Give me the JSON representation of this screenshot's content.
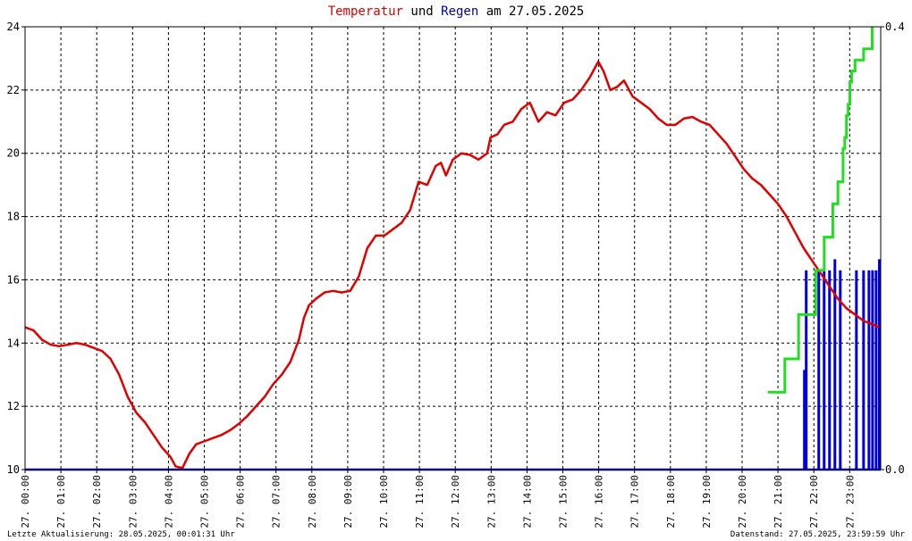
{
  "title": {
    "part1": "Temperatur",
    "part2": " und ",
    "part3": "Regen",
    "part4": " am 27.05.2025"
  },
  "colors": {
    "temperature": "#e00000",
    "rain_sum": "#22dd22",
    "rain_bars": "#0000e0",
    "grid": "#000000"
  },
  "footer": {
    "left": "Letzte Aktualisierung: 28.05.2025, 00:01:31 Uhr",
    "right": "Datenstand: 27.05.2025, 23:59:59 Uhr"
  },
  "chart_data": {
    "type": "line",
    "title": "Temperatur und Regen am 27.05.2025",
    "x_unit": "hours",
    "xlim": [
      0,
      24
    ],
    "ylim_left": [
      10,
      24
    ],
    "yticks_left": [
      "10",
      "12",
      "14",
      "16",
      "18",
      "20",
      "22",
      "24"
    ],
    "ylim_right": [
      0,
      0.4
    ],
    "yticks_right": [
      "0.0",
      "0.4"
    ],
    "xtick_labels": [
      "27. 00:00",
      "27. 01:00",
      "27. 02:00",
      "27. 03:00",
      "27. 04:00",
      "27. 05:00",
      "27. 06:00",
      "27. 07:00",
      "27. 08:00",
      "27. 09:00",
      "27. 10:00",
      "27. 11:00",
      "27. 12:00",
      "27. 13:00",
      "27. 14:00",
      "27. 15:00",
      "27. 16:00",
      "27. 17:00",
      "27. 18:00",
      "27. 19:00",
      "27. 20:00",
      "27. 21:00",
      "27. 22:00",
      "27. 23:00"
    ],
    "grid": true,
    "series": [
      {
        "name": "Temperatur",
        "axis": "left",
        "points": [
          [
            0,
            14.5
          ],
          [
            0.25,
            14.4
          ],
          [
            0.5,
            14.1
          ],
          [
            0.75,
            13.95
          ],
          [
            1,
            13.9
          ],
          [
            1.25,
            13.95
          ],
          [
            1.5,
            14.0
          ],
          [
            1.75,
            13.95
          ],
          [
            2,
            13.85
          ],
          [
            2.25,
            13.75
          ],
          [
            2.5,
            13.5
          ],
          [
            2.75,
            13.0
          ],
          [
            3,
            12.3
          ],
          [
            3.25,
            11.8
          ],
          [
            3.5,
            11.5
          ],
          [
            3.75,
            11.1
          ],
          [
            4,
            10.7
          ],
          [
            4.25,
            10.4
          ],
          [
            4.4,
            10.1
          ],
          [
            4.6,
            10.05
          ],
          [
            4.8,
            10.5
          ],
          [
            5,
            10.8
          ],
          [
            5.25,
            10.9
          ],
          [
            5.5,
            11.0
          ],
          [
            5.75,
            11.1
          ],
          [
            6,
            11.25
          ],
          [
            6.25,
            11.45
          ],
          [
            6.5,
            11.7
          ],
          [
            6.75,
            12.0
          ],
          [
            7,
            12.3
          ],
          [
            7.25,
            12.7
          ],
          [
            7.5,
            13.0
          ],
          [
            7.75,
            13.4
          ],
          [
            8,
            14.1
          ],
          [
            8.15,
            14.8
          ],
          [
            8.3,
            15.2
          ],
          [
            8.5,
            15.4
          ],
          [
            8.75,
            15.6
          ],
          [
            9,
            15.65
          ],
          [
            9.25,
            15.6
          ],
          [
            9.5,
            15.65
          ],
          [
            9.75,
            16.1
          ],
          [
            10,
            17.0
          ],
          [
            10.25,
            17.4
          ],
          [
            10.5,
            17.4
          ],
          [
            10.75,
            17.6
          ],
          [
            11,
            17.8
          ],
          [
            11.25,
            18.2
          ],
          [
            11.5,
            19.1
          ],
          [
            11.75,
            19.0
          ],
          [
            12,
            19.6
          ],
          [
            12.15,
            19.7
          ],
          [
            12.3,
            19.3
          ],
          [
            12.5,
            19.8
          ],
          [
            12.75,
            20.0
          ],
          [
            13,
            19.95
          ],
          [
            13.25,
            19.8
          ],
          [
            13.5,
            20.0
          ],
          [
            13.6,
            20.5
          ],
          [
            13.8,
            20.6
          ],
          [
            14,
            20.9
          ],
          [
            14.25,
            21.0
          ],
          [
            14.5,
            21.4
          ],
          [
            14.75,
            21.6
          ],
          [
            15,
            21.0
          ],
          [
            15.25,
            21.3
          ],
          [
            15.5,
            21.2
          ],
          [
            15.75,
            21.6
          ],
          [
            16,
            21.7
          ],
          [
            16.25,
            22.0
          ],
          [
            16.5,
            22.4
          ],
          [
            16.75,
            22.9
          ],
          [
            16.9,
            22.6
          ],
          [
            17.1,
            22.0
          ],
          [
            17.3,
            22.1
          ],
          [
            17.5,
            22.3
          ],
          [
            17.75,
            21.8
          ],
          [
            18,
            21.6
          ],
          [
            18.25,
            21.4
          ],
          [
            18.5,
            21.1
          ],
          [
            18.75,
            20.9
          ],
          [
            19,
            20.9
          ],
          [
            19.25,
            21.1
          ],
          [
            19.5,
            21.15
          ],
          [
            19.75,
            21.0
          ],
          [
            20,
            20.9
          ],
          [
            20.25,
            20.6
          ],
          [
            20.5,
            20.3
          ],
          [
            20.75,
            19.9
          ],
          [
            21,
            19.5
          ],
          [
            21.25,
            19.2
          ],
          [
            21.5,
            19.0
          ],
          [
            21.75,
            18.7
          ],
          [
            22,
            18.4
          ],
          [
            22.25,
            18.0
          ],
          [
            22.5,
            17.5
          ],
          [
            22.75,
            17.0
          ],
          [
            23,
            16.6
          ],
          [
            23.25,
            16.2
          ],
          [
            23.5,
            15.8
          ],
          [
            23.75,
            15.4
          ],
          [
            24,
            15.1
          ],
          [
            24.25,
            14.9
          ],
          [
            24.5,
            14.7
          ],
          [
            24.75,
            14.6
          ],
          [
            24.95,
            14.5
          ]
        ]
      },
      {
        "name": "Regen",
        "axis": "right",
        "bars": [
          [
            21.7,
            0.09
          ],
          [
            21.75,
            0.18
          ],
          [
            22.1,
            0.18
          ],
          [
            22.25,
            0.18
          ],
          [
            22.4,
            0.18
          ],
          [
            22.55,
            0.19
          ],
          [
            22.7,
            0.18
          ],
          [
            23.15,
            0.18
          ],
          [
            23.35,
            0.18
          ],
          [
            23.5,
            0.18
          ],
          [
            23.6,
            0.18
          ],
          [
            23.7,
            0.18
          ],
          [
            23.8,
            0.18
          ],
          [
            23.9,
            0.19
          ],
          [
            24.0,
            0.18
          ]
        ]
      },
      {
        "name": "Regen Summe",
        "axis": "right",
        "points": [
          [
            21.7,
            0.07
          ],
          [
            22.1,
            0.07
          ],
          [
            22.2,
            0.1
          ],
          [
            22.55,
            0.1
          ],
          [
            22.6,
            0.14
          ],
          [
            23.05,
            0.14
          ],
          [
            23.1,
            0.18
          ],
          [
            23.3,
            0.18
          ],
          [
            23.35,
            0.21
          ],
          [
            23.55,
            0.21
          ],
          [
            23.6,
            0.24
          ],
          [
            23.7,
            0.24
          ],
          [
            23.75,
            0.26
          ],
          [
            23.85,
            0.26
          ],
          [
            23.9,
            0.29
          ],
          [
            23.95,
            0.3
          ],
          [
            24.0,
            0.32
          ],
          [
            24.05,
            0.33
          ],
          [
            24.1,
            0.35
          ],
          [
            24.15,
            0.36
          ],
          [
            24.25,
            0.37
          ],
          [
            24.5,
            0.38
          ],
          [
            24.75,
            0.4
          ]
        ]
      }
    ]
  }
}
